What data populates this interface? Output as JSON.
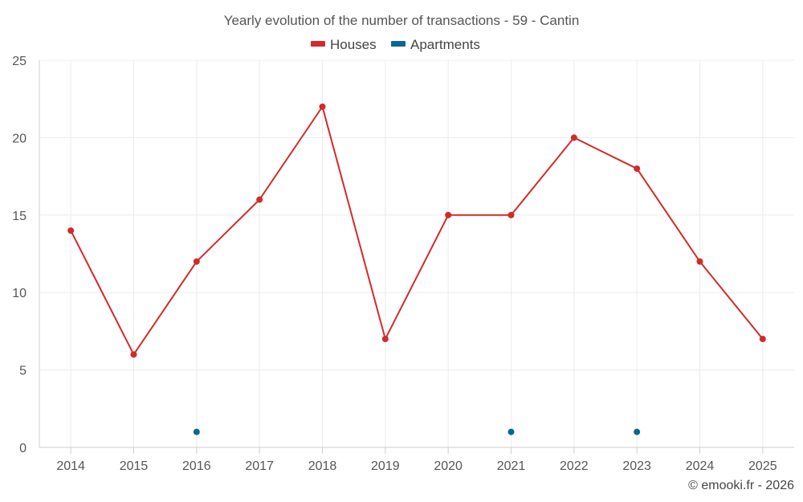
{
  "chart_data": {
    "type": "line",
    "title": "Yearly evolution of the number of transactions - 59 - Cantin",
    "categories": [
      "2014",
      "2015",
      "2016",
      "2017",
      "2018",
      "2019",
      "2020",
      "2021",
      "2022",
      "2023",
      "2024",
      "2025"
    ],
    "series": [
      {
        "name": "Houses",
        "color": "#d32a2a",
        "values": [
          14,
          6,
          12,
          16,
          22,
          7,
          15,
          15,
          20,
          18,
          12,
          7
        ]
      },
      {
        "name": "Apartments",
        "color": "#0a6696",
        "values": [
          null,
          null,
          1,
          null,
          null,
          null,
          null,
          1,
          null,
          1,
          null,
          null
        ]
      }
    ],
    "ylim": [
      0,
      25
    ],
    "yticks": [
      0,
      5,
      10,
      15,
      20,
      25
    ],
    "xlabel": "",
    "ylabel": "",
    "grid": true,
    "legend": "top-center"
  },
  "credit": "© emooki.fr - 2026"
}
